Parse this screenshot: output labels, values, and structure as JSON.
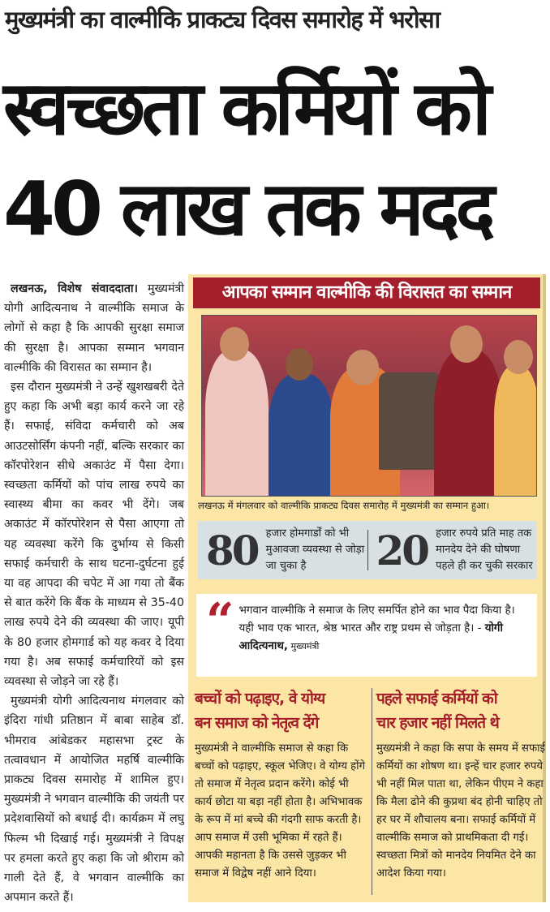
{
  "kicker": "मुख्यमंत्री का वाल्मीकि प्राकट्य दिवस समारोह में भरोसा",
  "headline": {
    "line1": "स्वच्छता कर्मियों को",
    "line2": "40 लाख तक मदद"
  },
  "article": {
    "dateline": "लखनऊ, विशेष संवाददाता।",
    "paragraphs": [
      "मुख्यमंत्री योगी आदित्यनाथ ने वाल्मीकि समाज के लोगों से कहा है कि आपकी सुरक्षा समाज की सुरक्षा है। आपका सम्मान भगवान वाल्मीकि की विरासत का सम्मान है।",
      "इस दौरान मुख्यमंत्री ने उन्हें खुशखबरी देते हुए कहा कि अभी बड़ा कार्य करने जा रहे हैं। सफाई, संविदा कर्मचारी को अब आउटसोर्सिंग कंपनी नहीं, बल्कि सरकार का कॉरपोरेशन सीधे अकाउंट में पैसा देगा। स्वच्छता कर्मियों को पांच लाख रुपये का स्वास्थ्य बीमा का कवर भी देंगे। जब अकाउंट में कॉरपोरेशन से पैसा आएगा तो यह व्यवस्था करेंगे कि दुर्भाग्य से किसी सफाई कर्मचारी के साथ घटना-दुर्घटना हुई या वह आपदा की चपेट में आ गया तो बैंक से बात करेंगे कि बैंक के माध्यम से 35-40 लाख रुपये देने की व्यवस्था की जाए। यूपी के 80 हजार होमगार्ड को यह कवर दे दिया गया है। अब सफाई कर्मचारियों को इस व्यवस्था से जोड़ने जा रहे हैं।",
      "मुख्यमंत्री योगी आदित्यनाथ मंगलवार को इंदिरा गांधी प्रतिष्ठान में बाबा साहेब डॉ. भीमराव आंबेडकर महासभा ट्रस्ट के तत्वावधान में आयोजित महर्षि वाल्मीकि प्राकट्य दिवस समारोह में शामिल हुए। मुख्यमंत्री ने भगवान वाल्मीकि की जयंती पर प्रदेशवासियों को बधाई दी। कार्यक्रम में लघु फिल्म भी दिखाई गई। मुख्यमंत्री ने विपक्ष पर हमला करते हुए कहा कि जो श्रीराम को गाली देते हैं, वे भगवान वाल्मीकि का अपमान करते हैं।"
    ]
  },
  "panel": {
    "banner": "आपका सम्मान वाल्मीकि की विरासत का सम्मान",
    "caption": "लखनऊ में मंगलवार को वाल्मीकि प्राकट्य दिवस समारोह में मुख्यमंत्री का सम्मान हुआ।",
    "stats": [
      {
        "number": "80",
        "text": "हजार होमगार्डों को भी मुआवजा व्यवस्था से जोड़ा जा चुका है"
      },
      {
        "number": "20",
        "text": "हजार रुपये प्रति माह तक मानदेय देने की घोषणा पहले ही कर चुकी सरकार"
      }
    ],
    "quote": {
      "mark": "“",
      "text": "भगवान वाल्मीकि ने समाज के लिए समर्पित होने का भाव पैदा किया है। यही भाव एक भारत, श्रेष्ठ भारत और राष्ट्र प्रथम से जोड़ता है। - ",
      "author": "योगी आदित्यनाथ,",
      "role": " मुख्यमंत्री"
    },
    "columns": [
      {
        "title1": "बच्चों को पढ़ाइए, वे योग्य",
        "title2": "बन समाज को नेतृत्व देंगे",
        "body": "मुख्यमंत्री ने वाल्मीकि समाज से कहा कि बच्चों को पढ़ाइए, स्कूल भेजिए। वे योग्य होंगे तो समाज में नेतृत्व प्रदान करेंगे। कोई भी कार्य छोटा या बड़ा नहीं होता है। अभिभावक के रूप में मां बच्चे की गंदगी साफ करती है। आप समाज में उसी भूमिका में रहते हैं। आपकी महानता है कि उससे जुड़कर भी समाज में विद्वेष नहीं आने दिया।"
      },
      {
        "title1": "पहले सफाई कर्मियों को",
        "title2": "चार हजार नहीं मिलते थे",
        "body": "मुख्यमंत्री ने कहा कि सपा के समय में सफाई कर्मियों का शोषण था। इन्हें चार हजार रुपये भी नहीं मिल पाता था, लेकिन पीएम ने कहा कि मैला ढोने की कुप्रथा बंद होनी चाहिए तो हर घर में शौचालय बना। सफाई कर्मियों में वाल्मीकि समाज को प्राथमिकता दी गई। स्वच्छता मित्रों को मानदेय नियमित देने का आदेश किया गया।"
      }
    ]
  },
  "colors": {
    "accent_red": "#a51e2b",
    "panel_bg": "#fbe6a6",
    "stats_bg": "#d8e0e4"
  }
}
